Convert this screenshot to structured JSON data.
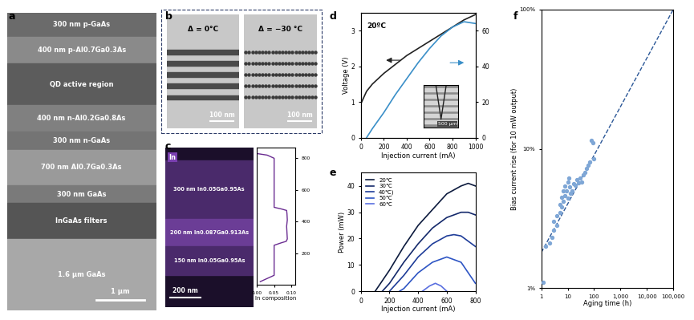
{
  "panel_labels": [
    "a",
    "b",
    "c",
    "d",
    "e",
    "f"
  ],
  "panel_a": {
    "layers": [
      "300 nm p-GaAs",
      "400 nm p-Al0.7Ga0.3As",
      "QD active region",
      "400 nm n-Al0.2Ga0.8As",
      "300 nm n-GaAs",
      "700 nm Al0.7Ga0.3As",
      "300 nm GaAs",
      "InGaAs filters",
      "1.6 µm GaAs"
    ],
    "scale_bar": "1 µm"
  },
  "panel_b": {
    "images": [
      {
        "label": "Δ = 0°C",
        "scale_bar": "100 nm"
      },
      {
        "label": "Δ = −30 °C",
        "scale_bar": "100 nm"
      }
    ]
  },
  "panel_c": {
    "map_label": "In",
    "layers": [
      "300 nm In0.05Ga0.95As",
      "200 nm In0.087Ga0.913As",
      "150 nm In0.05Ga0.95As"
    ],
    "scale_bar": "200 nm"
  },
  "chart_data": [
    {
      "type": "line",
      "xlabel": "In composition",
      "color": "#6a2c91",
      "x": [
        0.01,
        0.05,
        0.05,
        0.05,
        0.05,
        0.05,
        0.05,
        0.07,
        0.085,
        0.088,
        0.087,
        0.086,
        0.088,
        0.087,
        0.086,
        0.07,
        0.05,
        0.05,
        0.05,
        0.05,
        0.05,
        0.05,
        0.05,
        0.05,
        0.05,
        0.03,
        0.0
      ],
      "y": [
        20,
        60,
        100,
        140,
        180,
        220,
        250,
        265,
        275,
        290,
        330,
        370,
        410,
        450,
        470,
        480,
        490,
        520,
        560,
        600,
        640,
        680,
        720,
        760,
        800,
        820,
        830
      ],
      "xlim": [
        0,
        0.11
      ],
      "xticks": [
        {
          "value": 0.0,
          "label": "0.00"
        },
        {
          "value": 0.05,
          "label": "0.05"
        },
        {
          "value": 0.1,
          "label": "0.10"
        }
      ],
      "ylim": [
        0,
        870
      ],
      "yticks": [
        200,
        400,
        600,
        800
      ]
    },
    {
      "type": "line",
      "annotation": "20ºC",
      "inset_scale_bar": "500 µm",
      "xlabel": "Injection current (mA)",
      "ylabel": "Voltage (V)",
      "x": [
        0,
        50,
        100,
        200,
        300,
        400,
        500,
        600,
        700,
        800,
        900,
        1000
      ],
      "series": [
        {
          "color": "#222222",
          "values": [
            0.95,
            1.3,
            1.5,
            1.8,
            2.05,
            2.3,
            2.5,
            2.7,
            2.9,
            3.1,
            3.3,
            3.45
          ]
        },
        {
          "color": "#3a8fc8",
          "axis": "y2",
          "values": [
            null,
            0,
            5,
            14,
            24,
            33,
            42,
            50,
            57,
            62,
            65,
            64
          ]
        }
      ],
      "xlim": [
        0,
        1000
      ],
      "xticks": [
        0,
        200,
        400,
        600,
        800,
        1000
      ],
      "ylim": [
        0,
        3.5
      ],
      "yticks": [
        0,
        1,
        2,
        3
      ],
      "y2lim": [
        0,
        70
      ],
      "y2ticks": [
        0,
        20,
        40,
        60
      ]
    },
    {
      "type": "line",
      "xlabel": "Injection current (mA)",
      "ylabel": "Power (mW)",
      "legend": "upper left",
      "series": [
        {
          "name": "20℃",
          "color": "#0d1b3e",
          "x": [
            100,
            200,
            300,
            400,
            500,
            600,
            700,
            750,
            800
          ],
          "values": [
            0,
            8,
            17,
            25,
            31,
            37,
            40,
            41,
            40
          ]
        },
        {
          "name": "30℃",
          "color": "#14296b",
          "x": [
            150,
            200,
            300,
            400,
            500,
            600,
            700,
            750,
            800
          ],
          "values": [
            0,
            3,
            11,
            18,
            24,
            28,
            30,
            30,
            29
          ]
        },
        {
          "name": "40℃)",
          "color": "#1f3d99",
          "x": [
            200,
            300,
            400,
            500,
            600,
            650,
            700,
            800
          ],
          "values": [
            0,
            6,
            13,
            18,
            21,
            21.5,
            21,
            17
          ]
        },
        {
          "name": "50℃",
          "color": "#2e55c4",
          "x": [
            270,
            300,
            400,
            500,
            600,
            700,
            750,
            800
          ],
          "values": [
            0,
            1,
            7,
            11,
            13,
            11,
            7,
            3
          ]
        },
        {
          "name": "60℃",
          "color": "#5a6fe0",
          "x": [
            430,
            480,
            520,
            560,
            600
          ],
          "values": [
            0,
            2,
            3,
            2,
            0
          ]
        }
      ],
      "xlim": [
        0,
        800
      ],
      "xticks": [
        0,
        200,
        400,
        600,
        800
      ],
      "ylim": [
        0,
        45
      ],
      "yticks": [
        0,
        10,
        20,
        30,
        40
      ]
    },
    {
      "type": "scatter",
      "log": true,
      "xlabel": "Aging time (h)",
      "ylabel": "Bias current rise (for 10 mW output)",
      "color": "#7fa7d6",
      "marker": "circle",
      "x": [
        1.2,
        1.5,
        2,
        2.5,
        3,
        3,
        4,
        4,
        5,
        5,
        6,
        6,
        7,
        7,
        8,
        8,
        9,
        10,
        10,
        11,
        12,
        13,
        15,
        17,
        20,
        22,
        25,
        30,
        35,
        40,
        45,
        50,
        60,
        70,
        80,
        90,
        100
      ],
      "values": [
        1.1,
        2.0,
        2.1,
        2.3,
        2.6,
        3.0,
        3.3,
        2.8,
        3.5,
        4.0,
        3.8,
        4.5,
        4.2,
        5.0,
        5.4,
        4.6,
        5.0,
        5.8,
        4.4,
        6.2,
        5.3,
        4.8,
        5.0,
        5.6,
        5.5,
        6.0,
        5.7,
        6.2,
        5.8,
        6.5,
        6.8,
        7.2,
        7.6,
        8.0,
        11.5,
        11.0,
        8.5
      ],
      "trend": {
        "x": [
          1,
          100000
        ],
        "values": [
          1.8,
          100
        ],
        "line_style": "dashed",
        "color": "#2b5797"
      },
      "xlim": [
        1,
        100000
      ],
      "xticks": [
        1,
        10,
        100,
        {
          "value": 1000,
          "label": "1,000"
        },
        {
          "value": 10000,
          "label": "10,000"
        },
        {
          "value": 100000,
          "label": "100,000"
        }
      ],
      "ylim": [
        1,
        100
      ],
      "yticks": [
        {
          "value": 1,
          "label": "1%"
        },
        {
          "value": 10,
          "label": "10%"
        },
        {
          "value": 100,
          "label": "100%"
        }
      ]
    }
  ]
}
